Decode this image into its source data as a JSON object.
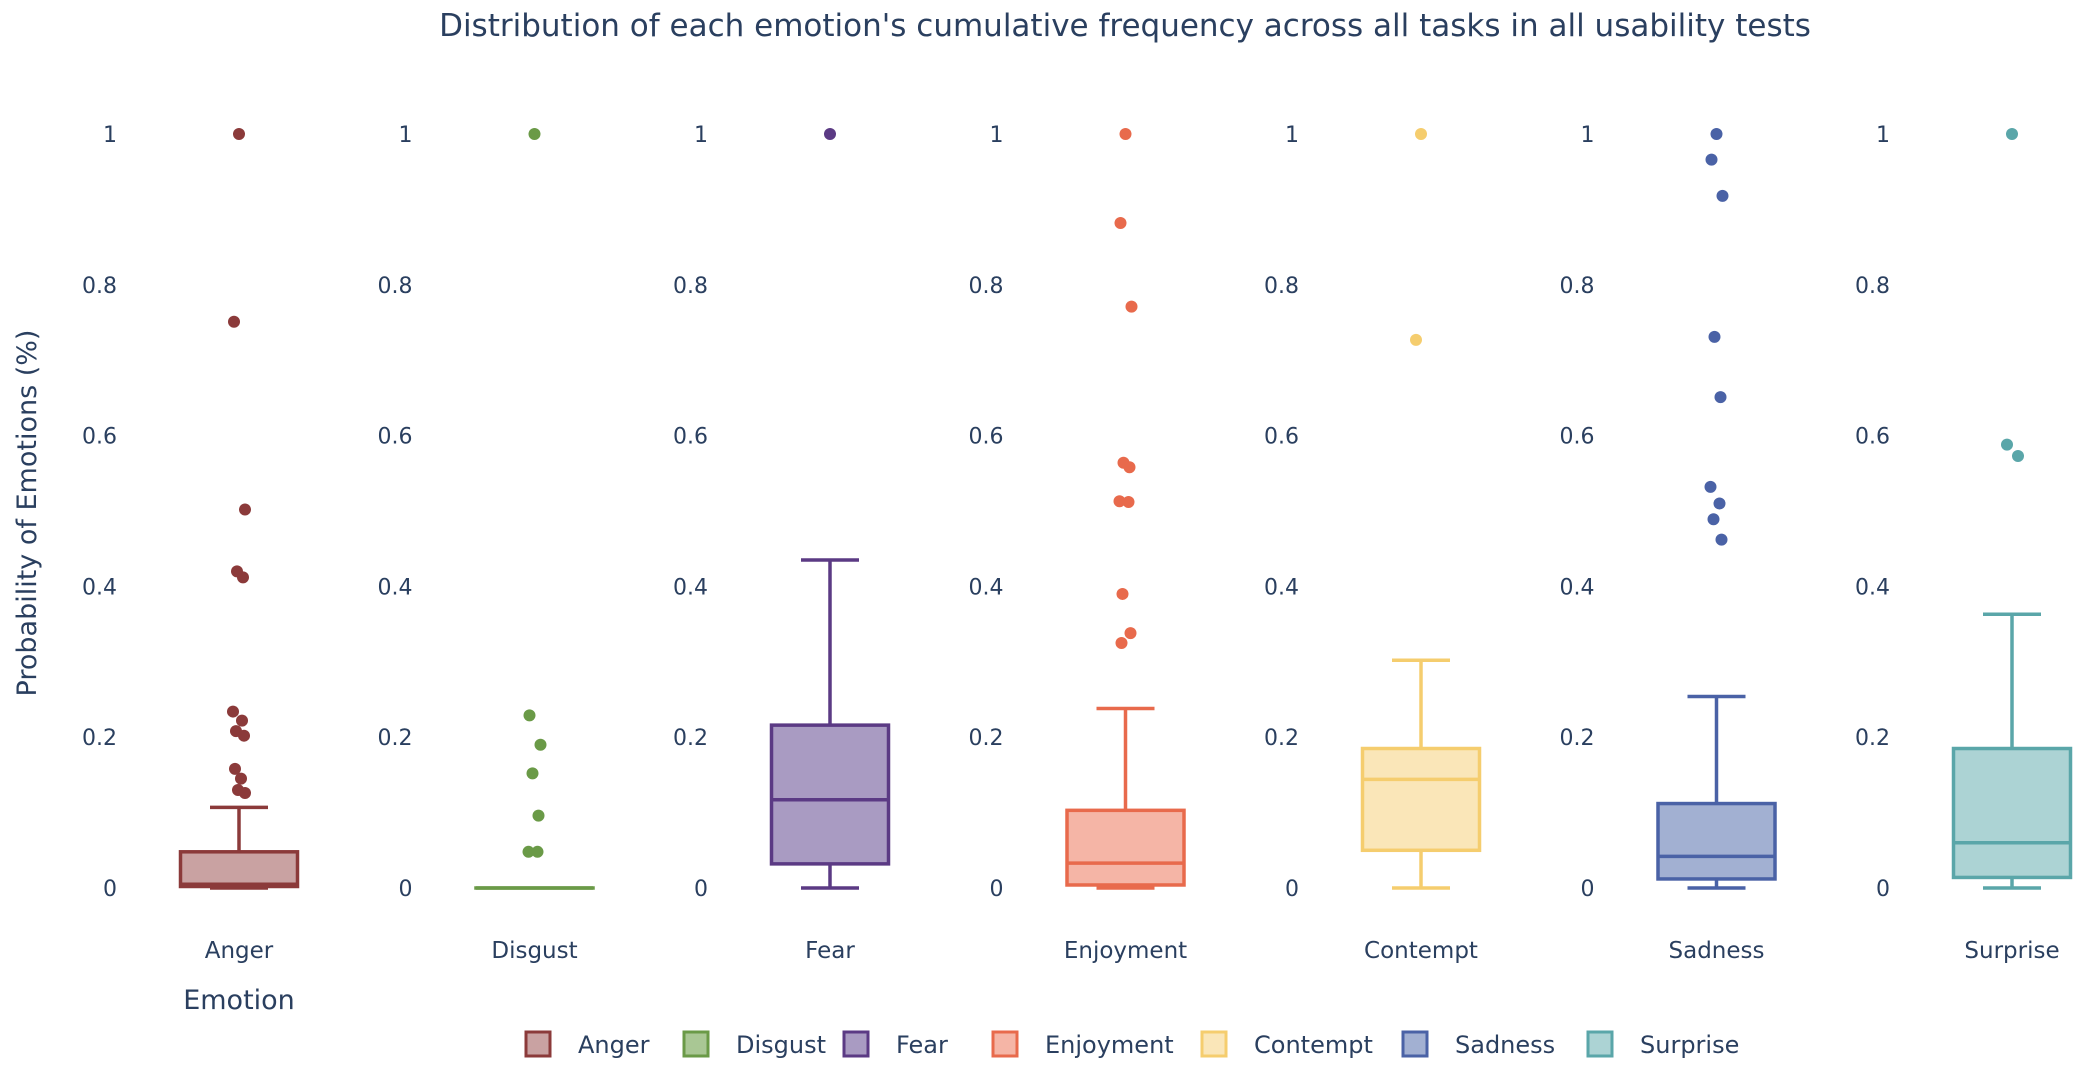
{
  "chart_data": {
    "type": "box",
    "title": "Distribution of each emotion's cumulative frequency across all tasks in all usability tests",
    "xlabel": "Emotion",
    "ylabel": "Probability of Emotions (%)",
    "ylim": [
      0,
      1
    ],
    "yticks": [
      "0",
      "0.2",
      "0.4",
      "0.6",
      "0.8",
      "1"
    ],
    "grid": false,
    "legend_position": "bottom",
    "series": [
      {
        "name": "Anger",
        "color": "#8b3a3a",
        "fill": "#c9a2a2",
        "min": 0,
        "q1": 0.002,
        "median": 0.005,
        "q3": 0.048,
        "max": 0.107,
        "outliers": [
          1.0,
          0.751,
          0.502,
          0.42,
          0.412,
          0.234,
          0.222,
          0.208,
          0.202,
          0.158,
          0.145,
          0.13,
          0.126
        ]
      },
      {
        "name": "Disgust",
        "color": "#6a9a47",
        "fill": "#a9c794",
        "min": 0,
        "q1": 0,
        "median": 0,
        "q3": 0,
        "max": 0,
        "outliers": [
          1.0,
          0.229,
          0.19,
          0.152,
          0.096,
          0.048,
          0.048
        ]
      },
      {
        "name": "Fear",
        "color": "#5b3a84",
        "fill": "#a99bc2",
        "min": 0,
        "q1": 0.032,
        "median": 0.117,
        "q3": 0.216,
        "max": 0.435,
        "outliers": [
          1.0
        ]
      },
      {
        "name": "Enjoyment",
        "color": "#e86a4c",
        "fill": "#f5b5a6",
        "min": 0,
        "q1": 0.004,
        "median": 0.033,
        "q3": 0.103,
        "max": 0.238,
        "outliers": [
          1.0,
          0.882,
          0.771,
          0.564,
          0.558,
          0.513,
          0.512,
          0.39,
          0.338,
          0.325
        ]
      },
      {
        "name": "Contempt",
        "color": "#f5cd6e",
        "fill": "#fae6b8",
        "min": 0,
        "q1": 0.05,
        "median": 0.144,
        "q3": 0.185,
        "max": 0.302,
        "outliers": [
          1.0,
          0.727
        ]
      },
      {
        "name": "Sadness",
        "color": "#4a62a6",
        "fill": "#a2b0d2",
        "min": 0,
        "q1": 0.012,
        "median": 0.042,
        "q3": 0.112,
        "max": 0.254,
        "outliers": [
          1.0,
          0.966,
          0.918,
          0.731,
          0.651,
          0.532,
          0.51,
          0.489,
          0.462
        ]
      },
      {
        "name": "Surprise",
        "color": "#5aa6a9",
        "fill": "#acd3d4",
        "min": 0,
        "q1": 0.014,
        "median": 0.06,
        "q3": 0.185,
        "max": 0.363,
        "outliers": [
          1.0,
          0.588,
          0.573
        ]
      }
    ]
  }
}
